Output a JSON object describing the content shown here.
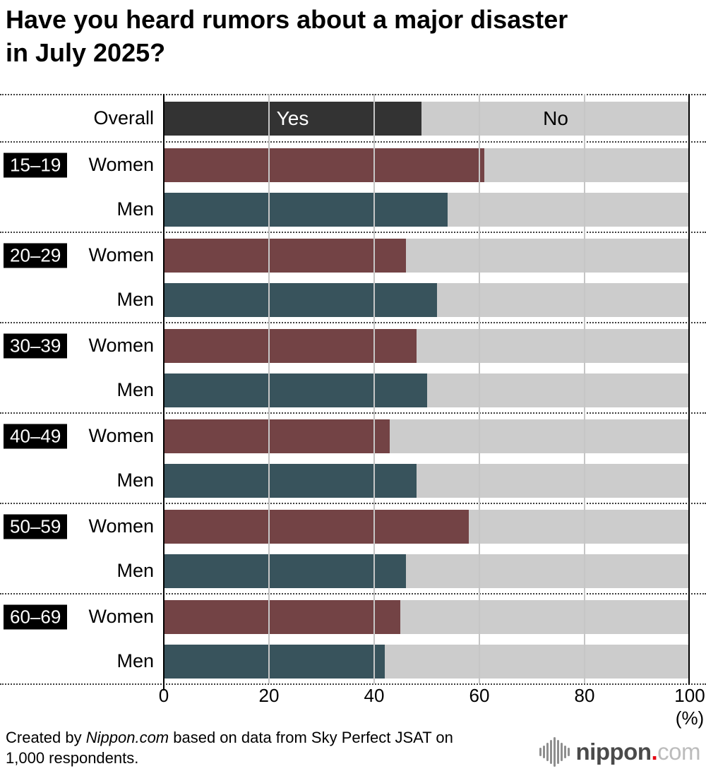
{
  "chart_data": {
    "type": "bar",
    "stacked": true,
    "title_lines": [
      "Have you heard rumors about a major disaster",
      "in July 2025?"
    ],
    "series": {
      "yes": "Yes",
      "no": "No"
    },
    "x_ticks": [
      0,
      20,
      40,
      60,
      80,
      100
    ],
    "xlim": [
      0,
      100
    ],
    "x_axis_unit": "(%)",
    "grid": true,
    "colors": {
      "overall": "#333333",
      "women": "#734345",
      "men": "#38535C",
      "no": "#CCCCCC"
    },
    "groups": [
      {
        "age": "",
        "rows": [
          {
            "label": "Overall",
            "yes": 49,
            "no": 51,
            "color_key": "overall",
            "show_labels": true
          }
        ]
      },
      {
        "age": "15–19",
        "rows": [
          {
            "label": "Women",
            "yes": 61,
            "no": 39,
            "color_key": "women"
          },
          {
            "label": "Men",
            "yes": 54,
            "no": 46,
            "color_key": "men"
          }
        ]
      },
      {
        "age": "20–29",
        "rows": [
          {
            "label": "Women",
            "yes": 46,
            "no": 54,
            "color_key": "women"
          },
          {
            "label": "Men",
            "yes": 52,
            "no": 48,
            "color_key": "men"
          }
        ]
      },
      {
        "age": "30–39",
        "rows": [
          {
            "label": "Women",
            "yes": 48,
            "no": 52,
            "color_key": "women"
          },
          {
            "label": "Men",
            "yes": 50,
            "no": 50,
            "color_key": "men"
          }
        ]
      },
      {
        "age": "40–49",
        "rows": [
          {
            "label": "Women",
            "yes": 43,
            "no": 57,
            "color_key": "women"
          },
          {
            "label": "Men",
            "yes": 48,
            "no": 52,
            "color_key": "men"
          }
        ]
      },
      {
        "age": "50–59",
        "rows": [
          {
            "label": "Women",
            "yes": 58,
            "no": 42,
            "color_key": "women"
          },
          {
            "label": "Men",
            "yes": 46,
            "no": 54,
            "color_key": "men"
          }
        ]
      },
      {
        "age": "60–69",
        "rows": [
          {
            "label": "Women",
            "yes": 45,
            "no": 55,
            "color_key": "women"
          },
          {
            "label": "Men",
            "yes": 42,
            "no": 58,
            "color_key": "men"
          }
        ]
      }
    ]
  },
  "footer": {
    "credit_prefix": "Created by ",
    "credit_brand": "Nippon.com",
    "credit_middle": " based on data from Sky Perfect JSAT on",
    "credit_line2": "1,000 respondents.",
    "logo_name": "nippon",
    "logo_dot": ".",
    "logo_tld": "com"
  }
}
